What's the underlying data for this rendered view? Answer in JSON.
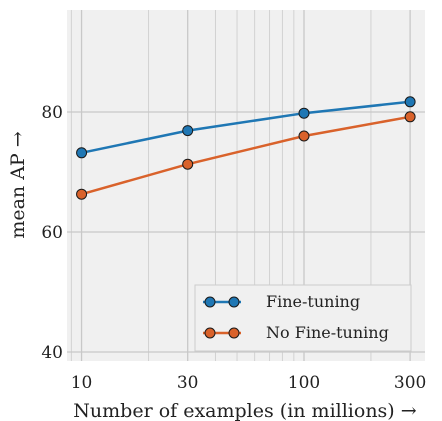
{
  "chart_data": {
    "type": "line",
    "title": "",
    "xlabel": "Number of examples (in millions) →",
    "ylabel": "mean AP →",
    "xscale": "log",
    "xlim": [
      8.6,
      350
    ],
    "ylim": [
      38.5,
      97
    ],
    "x_ticks": [
      10,
      30,
      100,
      300
    ],
    "x_tick_labels": [
      "10",
      "30",
      "100",
      "300"
    ],
    "y_ticks": [
      40,
      60,
      80
    ],
    "y_tick_labels": [
      "40",
      "60",
      "80"
    ],
    "grid": true,
    "legend_position": "bottom-right",
    "background": "#f0f0f0",
    "series": [
      {
        "name": "Fine-tuning",
        "color": "#1f77b4",
        "x": [
          10,
          30,
          100,
          300
        ],
        "y": [
          73.2,
          76.9,
          79.8,
          81.7
        ]
      },
      {
        "name": "No Fine-tuning",
        "color": "#d9622b",
        "x": [
          10,
          30,
          100,
          300
        ],
        "y": [
          66.3,
          71.3,
          76.0,
          79.2
        ]
      }
    ]
  }
}
